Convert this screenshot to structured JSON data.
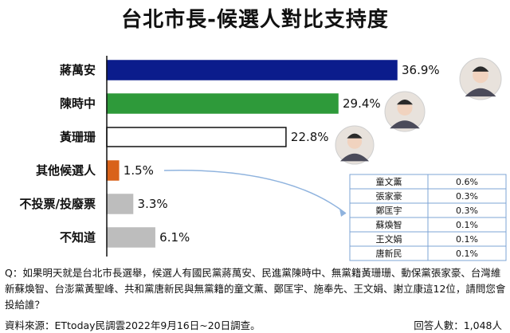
{
  "chart_data": {
    "type": "bar",
    "orientation": "horizontal",
    "title": "台北市長-候選人對比支持度",
    "categories": [
      "蔣萬安",
      "陳時中",
      "黃珊珊",
      "其他候選人",
      "不投票/投廢票",
      "不知道"
    ],
    "values": [
      36.9,
      29.4,
      22.8,
      1.5,
      3.3,
      6.1
    ],
    "value_labels": [
      "36.9%",
      "29.4%",
      "22.8%",
      "1.5%",
      "3.3%",
      "6.1%"
    ],
    "unit": "%",
    "xlim": [
      0,
      36.9
    ],
    "grid": false,
    "bar_colors": [
      "#0b1c8c",
      "#2e9a3a",
      "#ffffff",
      "#d9621a",
      "#bdbdbd",
      "#bdbdbd"
    ],
    "bar_borders": [
      "#0b1c8c",
      "#2e9a3a",
      "#111111",
      "#d9621a",
      "#bdbdbd",
      "#bdbdbd"
    ],
    "other_candidates": {
      "names": [
        "童文薰",
        "張家豪",
        "鄭匡宇",
        "蘇煥智",
        "王文娟",
        "唐新民"
      ],
      "values_label": [
        "0.6%",
        "0.3%",
        "0.3%",
        "0.1%",
        "0.1%",
        "0.1%"
      ],
      "values": [
        0.6,
        0.3,
        0.3,
        0.1,
        0.1,
        0.1
      ]
    }
  },
  "question": "Q：如果明天就是台北市長選舉，候選人有國民黨蔣萬安、民進黨陳時中、無黨籍黃珊珊、動保黨張家豪、台灣維新蘇煥智、台澎黨黃聖峰、共和黨唐新民與無黨籍的童文薰、鄭匡宇、施奉先、王文娟、謝立康這12位，請問您會投給誰？",
  "source": "資料來源：ETtoday民調雲2022年9月16日~20日調查。",
  "respondents": "回答人數：1,048人",
  "colors": {
    "axis": "#111111",
    "connector": "#8fb3de",
    "inset_border": "#7ea4d6"
  },
  "icons": [
    "candidate-photo-icon"
  ]
}
